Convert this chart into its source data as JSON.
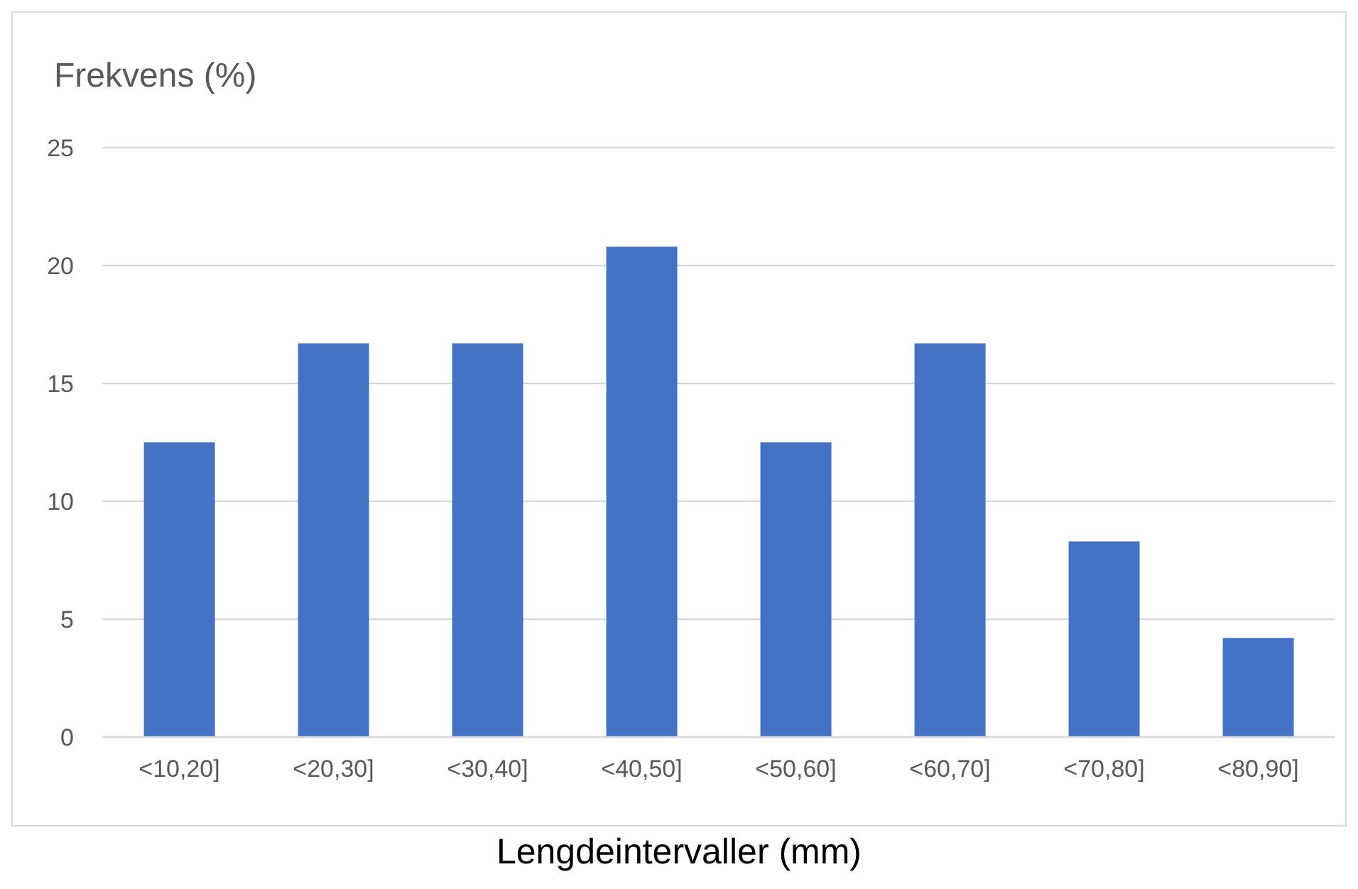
{
  "chart_data": {
    "type": "bar",
    "ylabel": "Frekvens (%)",
    "xlabel": "Lengdeintervaller (mm)",
    "categories": [
      "<10,20]",
      "<20,30]",
      "<30,40]",
      "<40,50]",
      "<50,60]",
      "<60,70]",
      "<70,80]",
      "<80,90]"
    ],
    "values": [
      12.5,
      16.7,
      16.7,
      20.8,
      12.5,
      16.7,
      8.3,
      4.2
    ],
    "color": "#4472c4",
    "ylim": [
      0,
      25
    ],
    "yticks": [
      0,
      5,
      10,
      15,
      20,
      25
    ],
    "grid": "y"
  }
}
